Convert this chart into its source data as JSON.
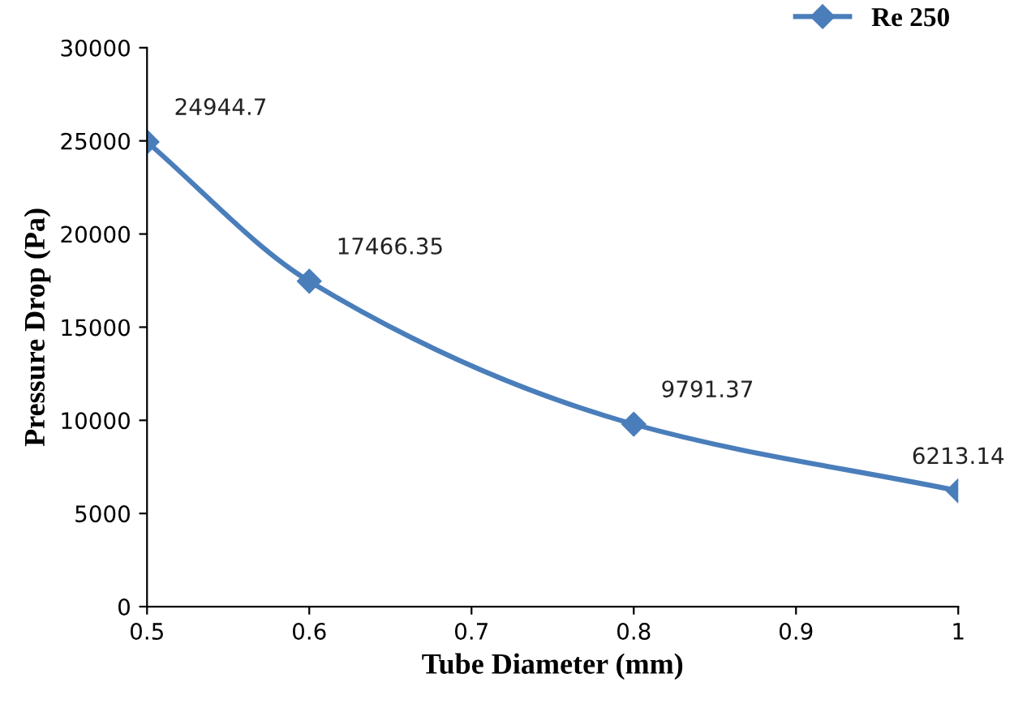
{
  "chart_data": {
    "type": "line",
    "xlabel": "Tube Diameter (mm)",
    "ylabel": "Pressure Drop (Pa)",
    "x": [
      0.5,
      0.6,
      0.8,
      1
    ],
    "series": [
      {
        "name": "Re 250",
        "color": "#4a7ebb",
        "values": [
          24944.7,
          17466.35,
          9791.37,
          6213.14
        ]
      }
    ],
    "xlim": [
      0.5,
      1
    ],
    "xticks": [
      0.5,
      0.6,
      0.7,
      0.8,
      0.9,
      {
        "value": 1,
        "label": "1"
      }
    ],
    "ylim": [
      0,
      30000
    ],
    "yticks": [
      0,
      5000,
      10000,
      15000,
      20000,
      25000,
      30000
    ],
    "data_labels": true,
    "marker": "diamond",
    "line_style": "solid",
    "grid": false,
    "legend": "top right"
  }
}
